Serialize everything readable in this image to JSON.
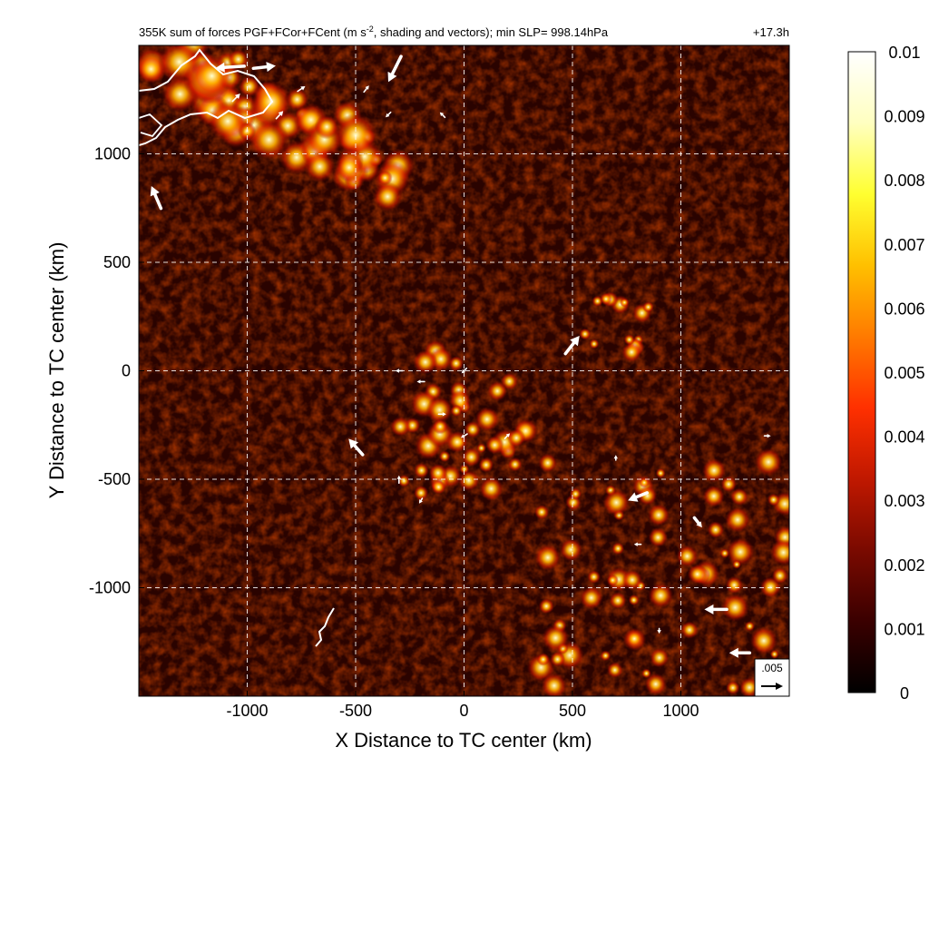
{
  "chart_data": {
    "type": "heatmap",
    "title": "355K sum of forces PGF+FCor+FCent (m s",
    "title_sup": "-2",
    "title_rest": ", shading and vectors); min SLP= 998.14hPa",
    "time_label": "+17.3h",
    "xlabel": "X Distance to TC center (km)",
    "ylabel": "Y Distance to TC center (km)",
    "xlim": [
      -1500,
      1500
    ],
    "ylim": [
      -1500,
      1500
    ],
    "x_ticks": [
      -1000,
      -500,
      0,
      500,
      1000
    ],
    "x_tick_labels": [
      "-1000",
      "-500",
      "0",
      "500",
      "1000"
    ],
    "y_ticks": [
      -1000,
      -500,
      0,
      500,
      1000
    ],
    "y_tick_labels": [
      "-1000",
      "-500",
      "0",
      "500",
      "1000"
    ],
    "grid": true,
    "colorbar": {
      "min": 0,
      "max": 0.01,
      "ticks": [
        0,
        0.001,
        0.002,
        0.003,
        0.004,
        0.005,
        0.006,
        0.007,
        0.008,
        0.009,
        0.01
      ],
      "tick_labels": [
        "0",
        "0.001",
        "0.002",
        "0.003",
        "0.004",
        "0.005",
        "0.006",
        "0.007",
        "0.008",
        "0.009",
        "0.01"
      ],
      "colormap": [
        "#000000",
        "#3a0000",
        "#7a0a00",
        "#c01800",
        "#ff3000",
        "#ff7a00",
        "#ffc000",
        "#ffff30",
        "#ffffc0",
        "#ffffff"
      ]
    },
    "reference_vector": {
      "label": ".005",
      "magnitude": 0.005
    },
    "vectors": [
      {
        "x": -1080,
        "y": 1400,
        "u": -0.0045,
        "v": -0.0003
      },
      {
        "x": -920,
        "y": 1400,
        "u": 0.0035,
        "v": 0.0004
      },
      {
        "x": -320,
        "y": 1390,
        "u": -0.002,
        "v": -0.004
      },
      {
        "x": -1420,
        "y": 800,
        "u": -0.0015,
        "v": 0.0035
      },
      {
        "x": 500,
        "y": 120,
        "u": 0.0022,
        "v": 0.0028
      },
      {
        "x": -500,
        "y": -350,
        "u": -0.0022,
        "v": 0.0025
      },
      {
        "x": 800,
        "y": -580,
        "u": -0.003,
        "v": -0.0012
      },
      {
        "x": 1160,
        "y": -1100,
        "u": -0.0035,
        "v": 0.0
      },
      {
        "x": 1270,
        "y": -1300,
        "u": -0.0032,
        "v": 0.0
      },
      {
        "x": 1080,
        "y": -700,
        "u": 0.0012,
        "v": -0.0015
      },
      {
        "x": -1050,
        "y": 1260,
        "u": 0.0012,
        "v": 0.0012
      },
      {
        "x": -850,
        "y": 1180,
        "u": 0.0011,
        "v": 0.0012
      },
      {
        "x": -750,
        "y": 1300,
        "u": 0.0012,
        "v": 0.0008
      },
      {
        "x": -450,
        "y": 1300,
        "u": 0.0008,
        "v": 0.001
      },
      {
        "x": -350,
        "y": 1180,
        "u": -0.0008,
        "v": -0.0008
      },
      {
        "x": -100,
        "y": 1180,
        "u": -0.0008,
        "v": 0.0008
      },
      {
        "x": -200,
        "y": -50,
        "u": -0.0012,
        "v": 0.0
      },
      {
        "x": -300,
        "y": 0,
        "u": -0.0011,
        "v": 0.0
      },
      {
        "x": 0,
        "y": 0,
        "u": -0.0008,
        "v": -0.0008
      },
      {
        "x": -100,
        "y": -200,
        "u": 0.0012,
        "v": 0.0
      },
      {
        "x": 0,
        "y": -300,
        "u": -0.001,
        "v": -0.0006
      },
      {
        "x": 200,
        "y": -300,
        "u": 0.0008,
        "v": 0.0008
      },
      {
        "x": -300,
        "y": -500,
        "u": 0.0,
        "v": 0.0012
      },
      {
        "x": -200,
        "y": -600,
        "u": -0.0005,
        "v": -0.0008
      },
      {
        "x": 800,
        "y": -800,
        "u": -0.0011,
        "v": 0.0
      },
      {
        "x": 900,
        "y": -1200,
        "u": 0.0,
        "v": -0.0008
      },
      {
        "x": 1400,
        "y": -300,
        "u": 0.001,
        "v": 0.0
      },
      {
        "x": 700,
        "y": -400,
        "u": 0.0,
        "v": 0.0008
      }
    ]
  }
}
